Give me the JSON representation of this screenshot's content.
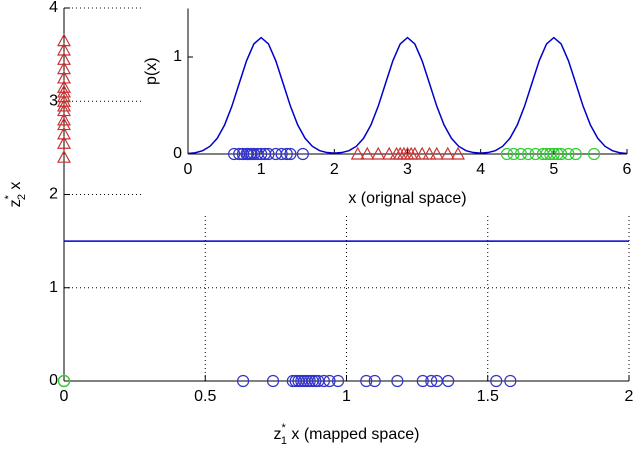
{
  "chart_data": [
    {
      "type": "scatter",
      "xlabel": {
        "text": "z",
        "sup": "*",
        "sub": "1",
        "rest": " x (mapped space)"
      },
      "ylabel": {
        "text": "z",
        "sup": "*",
        "sub": "2",
        "rest": " x"
      },
      "xlim": [
        0,
        2
      ],
      "ylim": [
        0,
        4
      ],
      "xticks": [
        0,
        0.5,
        1,
        1.5,
        2
      ],
      "yticks": [
        0,
        1,
        2,
        3,
        4
      ],
      "grid": true,
      "series": [
        {
          "kind": "line",
          "color": "#0000cc",
          "x": [
            0,
            2
          ],
          "values": [
            1.5,
            1.5
          ]
        },
        {
          "marker": "circle",
          "color": "#3333cc",
          "x": [
            0.634,
            0.74,
            0.81,
            0.82,
            0.83,
            0.84,
            0.85,
            0.86,
            0.87,
            0.88,
            0.89,
            0.9,
            0.92,
            0.94,
            0.97,
            1.07,
            1.1,
            1.18,
            1.27,
            1.3,
            1.32,
            1.36,
            1.53,
            1.58
          ],
          "values": [
            0,
            0,
            0,
            0,
            0,
            0,
            0,
            0,
            0,
            0,
            0,
            0,
            0,
            0,
            0,
            0,
            0,
            0,
            0,
            0,
            0,
            0,
            0,
            0
          ]
        },
        {
          "marker": "triangle",
          "color": "#cc3333",
          "x": [
            0,
            0,
            0,
            0,
            0,
            0,
            0,
            0,
            0,
            0,
            0,
            0,
            0,
            0,
            0,
            0
          ],
          "values": [
            2.4,
            2.55,
            2.65,
            2.75,
            2.8,
            2.9,
            2.95,
            3.0,
            3.05,
            3.1,
            3.15,
            3.25,
            3.35,
            3.45,
            3.55,
            3.65
          ]
        },
        {
          "marker": "circle",
          "color": "#33cc33",
          "x": [
            0,
            0,
            0
          ],
          "values": [
            0,
            0,
            0
          ]
        }
      ]
    },
    {
      "type": "scatter",
      "xlabel": "x (orignal space)",
      "ylabel": "p(x)",
      "xlim": [
        0,
        6
      ],
      "ylim": [
        0,
        1.5
      ],
      "xticks": [
        0,
        1,
        2,
        3,
        4,
        5,
        6
      ],
      "yticks": [
        0,
        1
      ],
      "grid": false,
      "series": [
        {
          "kind": "line",
          "color": "#0000cc",
          "x": [
            0,
            0.1,
            0.2,
            0.3,
            0.4,
            0.5,
            0.6,
            0.7,
            0.8,
            0.9,
            1,
            1.1,
            1.2,
            1.3,
            1.4,
            1.5,
            1.6,
            1.7,
            1.8,
            1.9,
            2,
            2.1,
            2.2,
            2.3,
            2.4,
            2.5,
            2.6,
            2.7,
            2.8,
            2.9,
            3,
            3.1,
            3.2,
            3.3,
            3.4,
            3.5,
            3.6,
            3.7,
            3.8,
            3.9,
            4,
            4.1,
            4.2,
            4.3,
            4.4,
            4.5,
            4.6,
            4.7,
            4.8,
            4.9,
            5,
            5.1,
            5.2,
            5.3,
            5.4,
            5.5,
            5.6,
            5.7,
            5.8,
            5.9,
            6
          ],
          "values": [
            0.005,
            0.013,
            0.034,
            0.079,
            0.162,
            0.299,
            0.493,
            0.728,
            0.961,
            1.135,
            1.2,
            1.135,
            0.961,
            0.728,
            0.493,
            0.299,
            0.162,
            0.079,
            0.034,
            0.015,
            0.009,
            0.015,
            0.034,
            0.079,
            0.162,
            0.299,
            0.493,
            0.728,
            0.961,
            1.135,
            1.2,
            1.135,
            0.961,
            0.728,
            0.493,
            0.299,
            0.162,
            0.079,
            0.034,
            0.015,
            0.009,
            0.015,
            0.034,
            0.079,
            0.162,
            0.299,
            0.493,
            0.728,
            0.961,
            1.135,
            1.2,
            1.135,
            0.961,
            0.728,
            0.493,
            0.299,
            0.162,
            0.079,
            0.034,
            0.013,
            0.005
          ]
        },
        {
          "marker": "circle",
          "color": "#3333cc",
          "x": [
            0.63,
            0.7,
            0.75,
            0.8,
            0.82,
            0.85,
            0.87,
            0.9,
            0.95,
            1.0,
            1.05,
            1.1,
            1.2,
            1.28,
            1.35,
            1.4,
            1.57
          ],
          "values": [
            0,
            0,
            0,
            0,
            0,
            0,
            0,
            0,
            0,
            0,
            0,
            0,
            0,
            0,
            0,
            0,
            0
          ]
        },
        {
          "marker": "triangle",
          "color": "#cc3333",
          "x": [
            2.32,
            2.45,
            2.6,
            2.75,
            2.85,
            2.9,
            2.95,
            3.0,
            3.05,
            3.1,
            3.2,
            3.3,
            3.4,
            3.55,
            3.69
          ],
          "values": [
            0,
            0,
            0,
            0,
            0,
            0,
            0,
            0,
            0,
            0,
            0,
            0,
            0,
            0,
            0
          ]
        },
        {
          "marker": "circle",
          "color": "#33cc33",
          "x": [
            4.36,
            4.45,
            4.55,
            4.65,
            4.75,
            4.85,
            4.9,
            4.95,
            5.0,
            5.05,
            5.1,
            5.2,
            5.3,
            5.55
          ],
          "values": [
            0,
            0,
            0,
            0,
            0,
            0,
            0,
            0,
            0,
            0,
            0,
            0,
            0,
            0
          ]
        }
      ]
    }
  ]
}
